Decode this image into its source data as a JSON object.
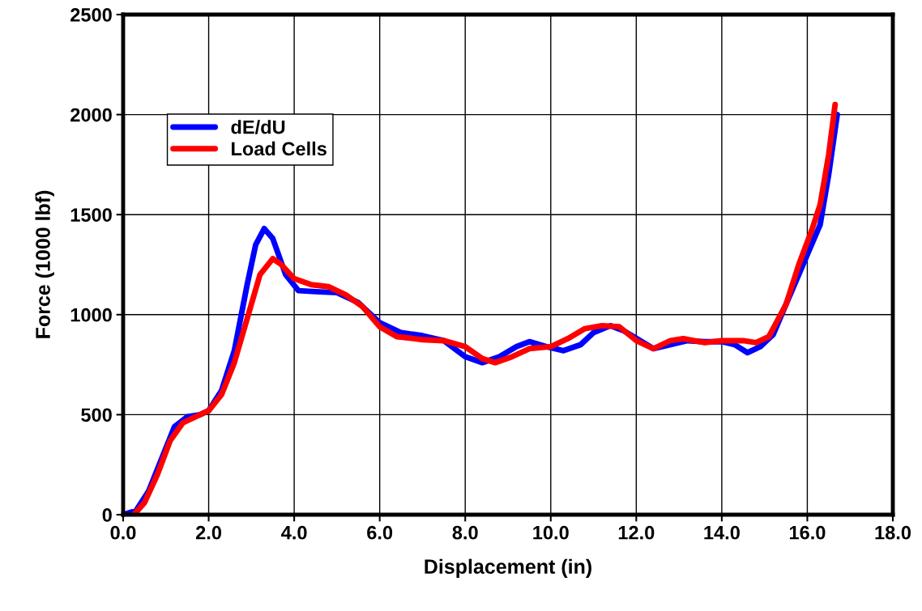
{
  "chart_data": {
    "type": "line",
    "xlabel": "Displacement (in)",
    "ylabel": "Force (1000 lbf)",
    "xlim": [
      0,
      18
    ],
    "ylim": [
      0,
      2500
    ],
    "xticks": [
      {
        "value": 0,
        "label": "0.0"
      },
      {
        "value": 2,
        "label": "2.0"
      },
      {
        "value": 4,
        "label": "4.0"
      },
      {
        "value": 6,
        "label": "6.0"
      },
      {
        "value": 8,
        "label": "8.0"
      },
      {
        "value": 10,
        "label": "10.0"
      },
      {
        "value": 12,
        "label": "12.0"
      },
      {
        "value": 14,
        "label": "14.0"
      },
      {
        "value": 16,
        "label": "16.0"
      },
      {
        "value": 18,
        "label": "18.0"
      }
    ],
    "yticks": [
      0,
      500,
      1000,
      1500,
      2000,
      2500
    ],
    "grid": true,
    "legend": "top left",
    "marker": "none",
    "line_style": "solid",
    "series": [
      {
        "name": "dE/dU",
        "color": "#0000ff",
        "x": [
          0,
          0.3,
          0.6,
          0.9,
          1.2,
          1.5,
          1.8,
          2.0,
          2.3,
          2.6,
          2.9,
          3.1,
          3.3,
          3.5,
          3.8,
          4.1,
          4.5,
          5.0,
          5.5,
          6.0,
          6.5,
          7.0,
          7.5,
          8.0,
          8.4,
          8.8,
          9.2,
          9.5,
          9.9,
          10.3,
          10.7,
          11.0,
          11.4,
          11.7,
          12.4,
          12.8,
          13.2,
          13.6,
          14.0,
          14.3,
          14.6,
          14.9,
          15.2,
          15.5,
          15.8,
          16.0,
          16.3,
          16.5,
          16.7
        ],
        "values": [
          0,
          20,
          120,
          280,
          440,
          490,
          500,
          520,
          620,
          820,
          1150,
          1350,
          1430,
          1380,
          1200,
          1120,
          1115,
          1110,
          1060,
          960,
          910,
          895,
          870,
          790,
          760,
          790,
          840,
          865,
          840,
          820,
          850,
          910,
          945,
          920,
          830,
          850,
          870,
          865,
          865,
          850,
          810,
          840,
          900,
          1050,
          1200,
          1300,
          1450,
          1700,
          2000
        ]
      },
      {
        "name": "Load Cells",
        "color": "#ff0000",
        "x": [
          0.25,
          0.5,
          0.8,
          1.1,
          1.4,
          1.7,
          2.0,
          2.3,
          2.6,
          2.9,
          3.2,
          3.5,
          3.7,
          4.0,
          4.4,
          4.8,
          5.2,
          5.6,
          6.0,
          6.4,
          7.0,
          7.5,
          8.0,
          8.4,
          8.7,
          9.1,
          9.5,
          10.0,
          10.4,
          10.8,
          11.2,
          11.6,
          12.0,
          12.4,
          12.8,
          13.1,
          13.6,
          14.0,
          14.5,
          14.8,
          15.1,
          15.5,
          15.8,
          16.1,
          16.3,
          16.5,
          16.65
        ],
        "values": [
          0,
          60,
          200,
          370,
          460,
          490,
          520,
          600,
          760,
          980,
          1200,
          1280,
          1250,
          1180,
          1150,
          1140,
          1100,
          1040,
          940,
          890,
          875,
          870,
          840,
          780,
          760,
          790,
          830,
          840,
          880,
          930,
          945,
          940,
          870,
          830,
          870,
          880,
          860,
          870,
          870,
          860,
          890,
          1050,
          1250,
          1420,
          1550,
          1800,
          2050
        ]
      }
    ]
  }
}
